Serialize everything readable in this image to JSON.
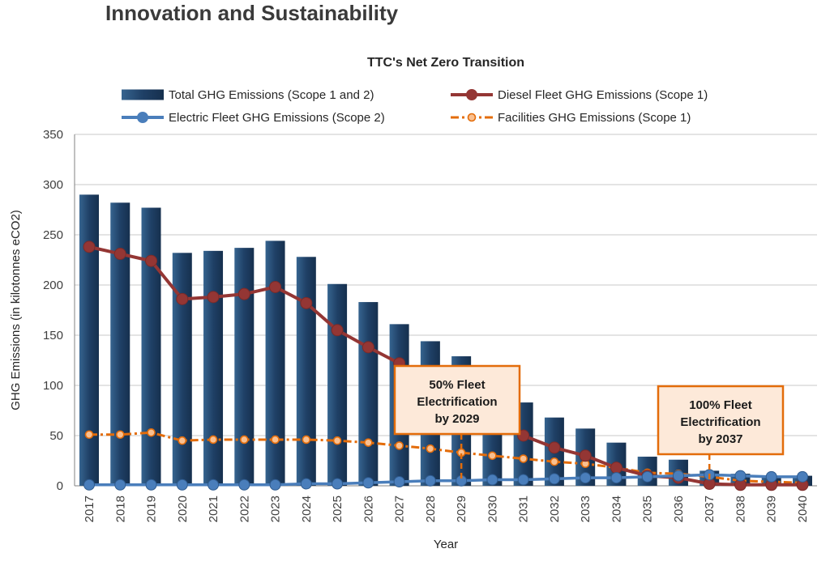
{
  "page": {
    "heading": "Innovation and Sustainability"
  },
  "chart_data": {
    "type": "bar+line combo",
    "title": "TTC's Net Zero Transition",
    "xlabel": "Year",
    "ylabel": "GHG Emissions (in kilotonnes eCO2)",
    "ylim": [
      0,
      350
    ],
    "ytick_step": 50,
    "grid": true,
    "legend_position": "top, two rows",
    "categories": [
      "2017",
      "2018",
      "2019",
      "2020",
      "2021",
      "2022",
      "2023",
      "2024",
      "2025",
      "2026",
      "2027",
      "2028",
      "2029",
      "2030",
      "2031",
      "2032",
      "2033",
      "2034",
      "2035",
      "2036",
      "2037",
      "2038",
      "2039",
      "2040"
    ],
    "series": [
      {
        "name": "Total GHG Emissions (Scope 1 and 2)",
        "type": "bar",
        "color": "#1F4066",
        "values": [
          290,
          282,
          277,
          232,
          234,
          237,
          244,
          228,
          201,
          183,
          161,
          144,
          129,
          106,
          83,
          68,
          57,
          43,
          29,
          26,
          15,
          12,
          10,
          10
        ]
      },
      {
        "name": "Diesel Fleet GHG Emissions (Scope 1)",
        "type": "line",
        "color": "#943634",
        "values": [
          238,
          231,
          224,
          186,
          188,
          191,
          198,
          182,
          155,
          138,
          122,
          105,
          90,
          68,
          50,
          38,
          30,
          18,
          10,
          8,
          2,
          1,
          1,
          1
        ]
      },
      {
        "name": "Electric Fleet GHG Emissions (Scope 2)",
        "type": "line",
        "color": "#4A7EBB",
        "values": [
          1,
          1,
          1,
          1,
          1,
          1,
          1,
          2,
          2,
          3,
          4,
          5,
          5,
          6,
          6,
          7,
          8,
          8,
          9,
          10,
          11,
          10,
          9,
          9
        ]
      },
      {
        "name": "Facilities GHG Emissions (Scope 1)",
        "type": "dashed-line",
        "color": "#E36C0A",
        "marker_fill": "#FAC090",
        "values": [
          51,
          51,
          53,
          45,
          46,
          46,
          46,
          46,
          45,
          43,
          40,
          37,
          33,
          30,
          27,
          24,
          22,
          18,
          13,
          12,
          9,
          5,
          4,
          3
        ]
      }
    ],
    "annotations": [
      {
        "year": "2029",
        "lines": [
          "50% Fleet",
          "Electrification",
          "by 2029"
        ]
      },
      {
        "year": "2037",
        "lines": [
          "100% Fleet",
          "Electrification",
          "by 2037"
        ]
      }
    ],
    "colors": {
      "bar_gradient": [
        "#36648F",
        "#1F4066",
        "#16304E"
      ],
      "grid": "#C9C9C9",
      "axis": "#808080",
      "text": "#3F3F3F",
      "title_text": "#262626",
      "annotation_fill": "#FDE9D9",
      "annotation_border": "#E36C0A"
    }
  }
}
